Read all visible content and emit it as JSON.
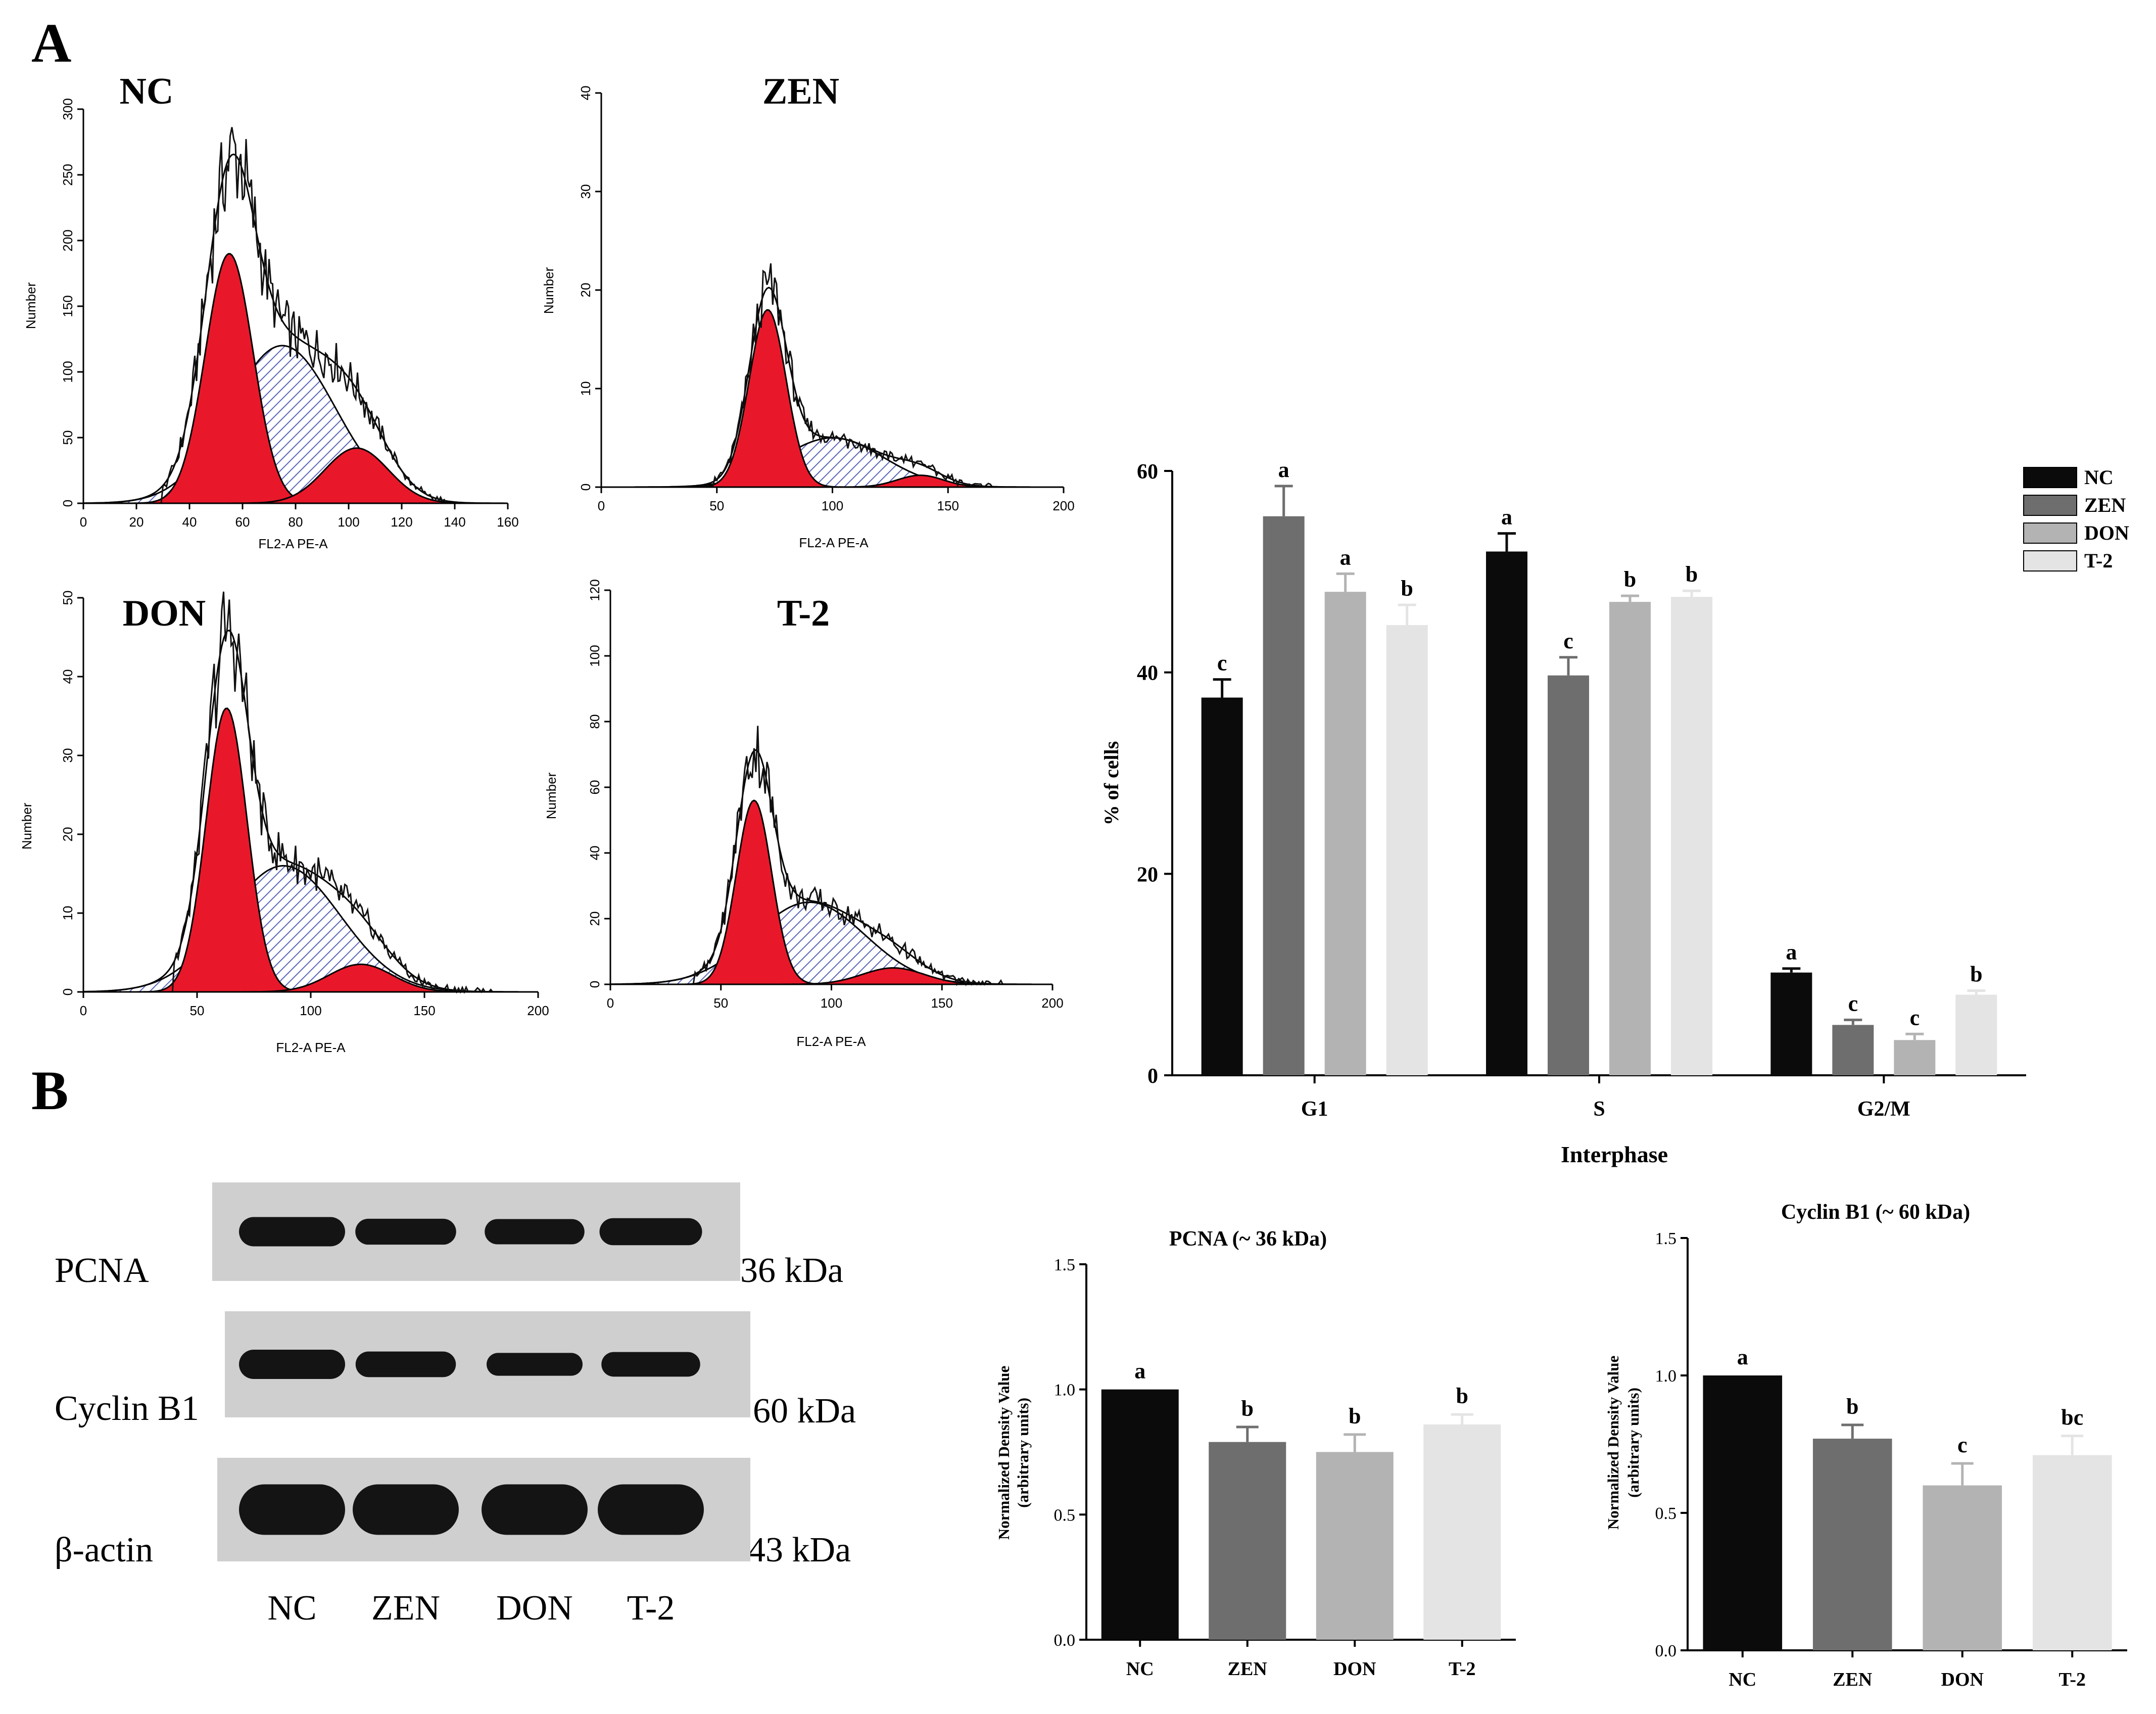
{
  "panels": {
    "a": "A",
    "b": "B"
  },
  "colors": {
    "red": "#e8182a",
    "hatch": "#5a66b8",
    "nc": "#0b0b0b",
    "zen": "#6e6e6e",
    "don": "#b3b3b3",
    "t2": "#e4e4e4",
    "blot_bg": "#cfcfcf",
    "band": "#141414"
  },
  "histograms": [
    {
      "title": "NC",
      "xlabel": "FL2-A PE-A",
      "ylabel": "Number",
      "xlim": [
        0,
        160
      ],
      "xticks": [
        0,
        20,
        40,
        60,
        80,
        100,
        120,
        140,
        160
      ],
      "ylim": [
        0,
        300
      ],
      "yticks": [
        0,
        50,
        100,
        150,
        200,
        250,
        300
      ],
      "g1": {
        "mu": 55,
        "sd": 9,
        "amp": 190
      },
      "s": {
        "mu": 75,
        "sd": 20,
        "amp": 120
      },
      "g2": {
        "mu": 103,
        "sd": 12,
        "amp": 42
      },
      "spread": [
        30,
        138
      ],
      "noise": 4
    },
    {
      "title": "ZEN",
      "xlabel": "FL2-A PE-A",
      "ylabel": "Number",
      "xlim": [
        0,
        200
      ],
      "xticks": [
        0,
        50,
        100,
        150,
        200
      ],
      "ylim": [
        0,
        40
      ],
      "yticks": [
        0,
        10,
        20,
        30,
        40
      ],
      "g1": {
        "mu": 72,
        "sd": 8,
        "amp": 18
      },
      "s": {
        "mu": 100,
        "sd": 22,
        "amp": 5
      },
      "g2": {
        "mu": 138,
        "sd": 10,
        "amp": 1.2
      },
      "spread": [
        48,
        175
      ],
      "noise": 5
    },
    {
      "title": "DON",
      "xlabel": "FL2-A PE-A",
      "ylabel": "Number",
      "xlim": [
        0,
        200
      ],
      "xticks": [
        0,
        50,
        100,
        150,
        200
      ],
      "ylim": [
        0,
        50
      ],
      "yticks": [
        0,
        10,
        20,
        30,
        40,
        50
      ],
      "g1": {
        "mu": 63,
        "sd": 9,
        "amp": 36
      },
      "s": {
        "mu": 88,
        "sd": 25,
        "amp": 16
      },
      "g2": {
        "mu": 122,
        "sd": 14,
        "amp": 3.5
      },
      "spread": [
        40,
        180
      ],
      "noise": 6
    },
    {
      "title": "T-2",
      "xlabel": "FL2-A PE-A",
      "ylabel": "Number",
      "xlim": [
        0,
        200
      ],
      "xticks": [
        0,
        50,
        100,
        150,
        200
      ],
      "ylim": [
        0,
        120
      ],
      "yticks": [
        0,
        20,
        40,
        60,
        80,
        100,
        120
      ],
      "g1": {
        "mu": 65,
        "sd": 8,
        "amp": 56
      },
      "s": {
        "mu": 90,
        "sd": 25,
        "amp": 25
      },
      "g2": {
        "mu": 128,
        "sd": 14,
        "amp": 5
      },
      "spread": [
        38,
        178
      ],
      "noise": 5
    }
  ],
  "chart_data": [
    {
      "type": "bar",
      "title": "",
      "xlabel": "Interphase",
      "ylabel": "% of cells",
      "categories": [
        "G1",
        "S",
        "G2/M"
      ],
      "ylim": [
        0,
        60
      ],
      "yticks": [
        0,
        20,
        40,
        60
      ],
      "series": [
        {
          "name": "NC",
          "values": [
            37.5,
            52,
            10.2
          ],
          "errors": [
            1.8,
            1.8,
            0.4
          ],
          "letters": [
            "c",
            "a",
            "a"
          ]
        },
        {
          "name": "ZEN",
          "values": [
            55.5,
            39.7,
            5
          ],
          "errors": [
            3,
            1.8,
            0.5
          ],
          "letters": [
            "a",
            "c",
            "c"
          ]
        },
        {
          "name": "DON",
          "values": [
            48,
            47,
            3.5
          ],
          "errors": [
            1.8,
            0.6,
            0.6
          ],
          "letters": [
            "a",
            "b",
            "c"
          ]
        },
        {
          "name": "T-2",
          "values": [
            44.7,
            47.5,
            8
          ],
          "errors": [
            2,
            0.6,
            0.4
          ],
          "letters": [
            "b",
            "b",
            "b"
          ]
        }
      ]
    },
    {
      "type": "bar",
      "title": "PCNA (~ 36 kDa)",
      "xlabel": "",
      "ylabel": "Normalized Density Value",
      "ylabel2": "(arbitrary units)",
      "categories": [
        "NC",
        "ZEN",
        "DON",
        "T-2"
      ],
      "ylim": [
        0,
        1.5
      ],
      "ytick_labels": [
        "0.0",
        "0.5",
        "1.0",
        "1.5"
      ],
      "values": [
        1.0,
        0.79,
        0.75,
        0.86
      ],
      "errors": [
        0,
        0.06,
        0.07,
        0.04
      ],
      "letters": [
        "a",
        "b",
        "b",
        "b"
      ]
    },
    {
      "type": "bar",
      "title": "Cyclin B1 (~ 60 kDa)",
      "xlabel": "",
      "ylabel": "Normalized Density Value",
      "ylabel2": "(arbitrary units)",
      "categories": [
        "NC",
        "ZEN",
        "DON",
        "T-2"
      ],
      "ylim": [
        0,
        1.5
      ],
      "ytick_labels": [
        "0.0",
        "0.5",
        "1.0",
        "1.5"
      ],
      "values": [
        1.0,
        0.77,
        0.6,
        0.71
      ],
      "errors": [
        0,
        0.05,
        0.08,
        0.07
      ],
      "letters": [
        "a",
        "b",
        "c",
        "bc"
      ]
    }
  ],
  "western": {
    "lanes": [
      "NC",
      "ZEN",
      "DON",
      "T-2"
    ],
    "rows": [
      {
        "protein": "PCNA",
        "kda": "36 kDa",
        "intensity": [
          1.0,
          0.79,
          0.75,
          0.86
        ]
      },
      {
        "protein": "Cyclin B1",
        "kda": "60 kDa",
        "intensity": [
          1.0,
          0.77,
          0.6,
          0.71
        ]
      },
      {
        "protein": "β-actin",
        "kda": "43 kDa",
        "intensity": [
          1.0,
          1.0,
          1.0,
          1.0
        ]
      }
    ]
  }
}
